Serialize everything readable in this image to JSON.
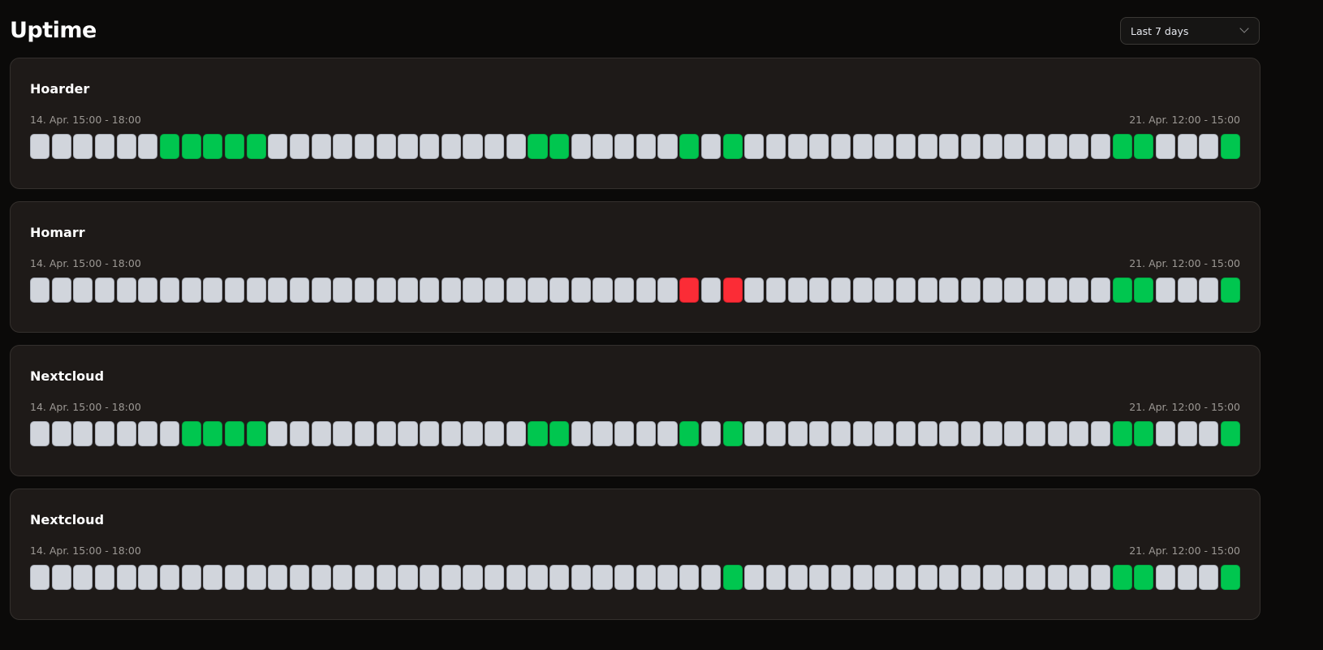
{
  "page": {
    "title": "Uptime"
  },
  "range_select": {
    "value": "Last 7 days"
  },
  "colors": {
    "up": "#00c64f",
    "down": "#fb2c36",
    "none": "#d1d5dc"
  },
  "monitors": [
    {
      "name": "Hoarder",
      "start_label": "14. Apr. 15:00 - 18:00",
      "end_label": "21. Apr. 12:00 - 15:00",
      "slots": [
        "none",
        "none",
        "none",
        "none",
        "none",
        "none",
        "up",
        "up",
        "up",
        "up",
        "up",
        "none",
        "none",
        "none",
        "none",
        "none",
        "none",
        "none",
        "none",
        "none",
        "none",
        "none",
        "none",
        "up",
        "up",
        "none",
        "none",
        "none",
        "none",
        "none",
        "up",
        "none",
        "up",
        "none",
        "none",
        "none",
        "none",
        "none",
        "none",
        "none",
        "none",
        "none",
        "none",
        "none",
        "none",
        "none",
        "none",
        "none",
        "none",
        "none",
        "up",
        "up",
        "none",
        "none",
        "none",
        "up"
      ]
    },
    {
      "name": "Homarr",
      "start_label": "14. Apr. 15:00 - 18:00",
      "end_label": "21. Apr. 12:00 - 15:00",
      "slots": [
        "none",
        "none",
        "none",
        "none",
        "none",
        "none",
        "none",
        "none",
        "none",
        "none",
        "none",
        "none",
        "none",
        "none",
        "none",
        "none",
        "none",
        "none",
        "none",
        "none",
        "none",
        "none",
        "none",
        "none",
        "none",
        "none",
        "none",
        "none",
        "none",
        "none",
        "down",
        "none",
        "down",
        "none",
        "none",
        "none",
        "none",
        "none",
        "none",
        "none",
        "none",
        "none",
        "none",
        "none",
        "none",
        "none",
        "none",
        "none",
        "none",
        "none",
        "up",
        "up",
        "none",
        "none",
        "none",
        "up"
      ]
    },
    {
      "name": "Nextcloud",
      "start_label": "14. Apr. 15:00 - 18:00",
      "end_label": "21. Apr. 12:00 - 15:00",
      "slots": [
        "none",
        "none",
        "none",
        "none",
        "none",
        "none",
        "none",
        "up",
        "up",
        "up",
        "up",
        "none",
        "none",
        "none",
        "none",
        "none",
        "none",
        "none",
        "none",
        "none",
        "none",
        "none",
        "none",
        "up",
        "up",
        "none",
        "none",
        "none",
        "none",
        "none",
        "up",
        "none",
        "up",
        "none",
        "none",
        "none",
        "none",
        "none",
        "none",
        "none",
        "none",
        "none",
        "none",
        "none",
        "none",
        "none",
        "none",
        "none",
        "none",
        "none",
        "up",
        "up",
        "none",
        "none",
        "none",
        "up"
      ]
    },
    {
      "name": "Nextcloud",
      "start_label": "14. Apr. 15:00 - 18:00",
      "end_label": "21. Apr. 12:00 - 15:00",
      "slots": [
        "none",
        "none",
        "none",
        "none",
        "none",
        "none",
        "none",
        "none",
        "none",
        "none",
        "none",
        "none",
        "none",
        "none",
        "none",
        "none",
        "none",
        "none",
        "none",
        "none",
        "none",
        "none",
        "none",
        "none",
        "none",
        "none",
        "none",
        "none",
        "none",
        "none",
        "none",
        "none",
        "up",
        "none",
        "none",
        "none",
        "none",
        "none",
        "none",
        "none",
        "none",
        "none",
        "none",
        "none",
        "none",
        "none",
        "none",
        "none",
        "none",
        "none",
        "up",
        "up",
        "none",
        "none",
        "none",
        "up"
      ]
    }
  ]
}
